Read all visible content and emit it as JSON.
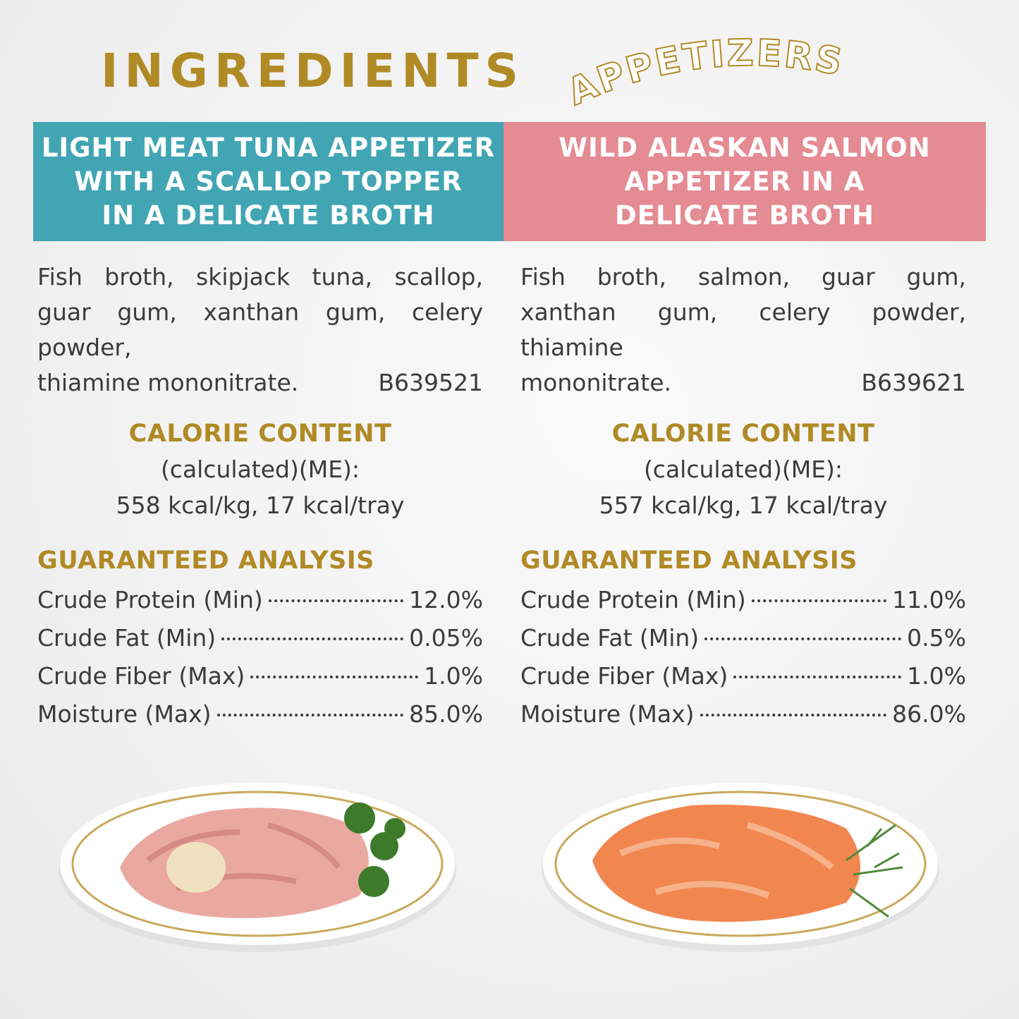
{
  "title": "INGREDIENTS",
  "subtitle": "APPETIZERS",
  "colors": {
    "gold": "#b08a25",
    "teal": "#42a5b3",
    "pink": "#e48b94",
    "text": "#3b3b3b"
  },
  "products": [
    {
      "name_lines": [
        "LIGHT MEAT TUNA APPETIZER",
        "WITH A SCALLOP TOPPER",
        "IN A DELICATE BROTH"
      ],
      "ingredients": "Fish broth, skipjack tuna, scallop, guar gum, xanthan gum, celery powder,",
      "ingredients_last": "thiamine mononitrate.",
      "code": "B639521",
      "calorie_heading": "CALORIE CONTENT",
      "calorie_note": "(calculated)(ME):",
      "calorie_value": "558 kcal/kg, 17 kcal/tray",
      "analysis_heading": "GUARANTEED ANALYSIS",
      "analysis": [
        {
          "label": "Crude Protein (Min)",
          "value": "12.0%"
        },
        {
          "label": "Crude Fat (Min)",
          "value": "0.05%"
        },
        {
          "label": "Crude Fiber (Max)",
          "value": "1.0%"
        },
        {
          "label": "Moisture (Max)",
          "value": "85.0%"
        }
      ]
    },
    {
      "name_lines": [
        "WILD ALASKAN SALMON",
        "APPETIZER IN A",
        "DELICATE BROTH"
      ],
      "ingredients": "Fish broth, salmon, guar gum, xanthan gum, celery powder, thiamine",
      "ingredients_last": "mononitrate.",
      "code": "B639621",
      "calorie_heading": "CALORIE CONTENT",
      "calorie_note": "(calculated)(ME):",
      "calorie_value": "557 kcal/kg, 17 kcal/tray",
      "analysis_heading": "GUARANTEED ANALYSIS",
      "analysis": [
        {
          "label": "Crude Protein (Min)",
          "value": "11.0%"
        },
        {
          "label": "Crude Fat (Min)",
          "value": "0.5%"
        },
        {
          "label": "Crude Fiber (Max)",
          "value": "1.0%"
        },
        {
          "label": "Moisture (Max)",
          "value": "86.0%"
        }
      ]
    }
  ]
}
